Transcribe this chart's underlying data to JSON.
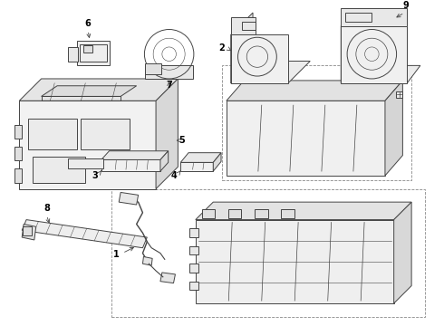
{
  "background_color": "#ffffff",
  "line_color": "#444444",
  "label_color": "#000000",
  "figsize": [
    4.9,
    3.6
  ],
  "dpi": 100,
  "components": {
    "label_fontsize": 7.0,
    "arrow_lw": 0.6,
    "component_lw": 0.7
  }
}
